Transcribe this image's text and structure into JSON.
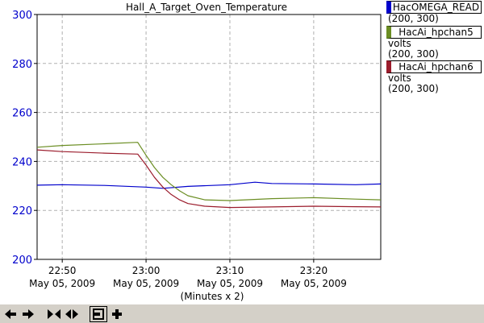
{
  "toolbar": {
    "icons": [
      "arrow-left-icon",
      "arrow-right-icon",
      "zoom-in-x-icon",
      "zoom-out-x-icon",
      "pointer-mode-icon",
      "add-icon"
    ]
  },
  "legend": [
    {
      "name": "HacOMEGA_READ",
      "units": "",
      "range": "(200, 300)",
      "color": "#0000cc"
    },
    {
      "name": "HacAi_hpchan5",
      "units": "volts",
      "range": "(200, 300)",
      "color": "#6b8e23"
    },
    {
      "name": "HacAi_hpchan6",
      "units": "volts",
      "range": "(200, 300)",
      "color": "#9b1c2c"
    }
  ],
  "chart_data": {
    "type": "line",
    "title": "Hall_A_Target_Oven_Temperature",
    "xlabel": "(Minutes x 2)",
    "x_range": [
      "22:47",
      "23:28"
    ],
    "x_ticks": [
      {
        "time": "22:50",
        "date": "May 05, 2009"
      },
      {
        "time": "23:00",
        "date": "May 05, 2009"
      },
      {
        "time": "23:10",
        "date": "May 05, 2009"
      },
      {
        "time": "23:20",
        "date": "May 05, 2009"
      }
    ],
    "ylim": [
      200,
      300
    ],
    "y_ticks": [
      200,
      220,
      240,
      260,
      280,
      300
    ],
    "grid": true,
    "axis_color": "#0000cc",
    "series": [
      {
        "name": "HacOMEGA_READ",
        "color": "#0000cc",
        "x": [
          "22:47",
          "22:50",
          "22:55",
          "23:00",
          "23:02",
          "23:05",
          "23:10",
          "23:13",
          "23:15",
          "23:20",
          "23:25",
          "23:28"
        ],
        "y": [
          230.3,
          230.5,
          230.2,
          229.5,
          229.0,
          229.8,
          230.5,
          231.5,
          231.0,
          230.8,
          230.5,
          230.8
        ]
      },
      {
        "name": "HacAi_hpchan5",
        "color": "#6b8e23",
        "x": [
          "22:47",
          "22:50",
          "22:55",
          "22:59",
          "23:00",
          "23:01",
          "23:02",
          "23:03",
          "23:04",
          "23:05",
          "23:07",
          "23:10",
          "23:15",
          "23:20",
          "23:25",
          "23:28"
        ],
        "y": [
          245.8,
          246.5,
          247.2,
          247.8,
          242.5,
          237.5,
          233.5,
          230.5,
          228.0,
          226.0,
          224.3,
          224.0,
          224.8,
          225.2,
          224.6,
          224.3
        ]
      },
      {
        "name": "HacAi_hpchan6",
        "color": "#9b1c2c",
        "x": [
          "22:47",
          "22:50",
          "22:55",
          "22:59",
          "23:00",
          "23:01",
          "23:02",
          "23:03",
          "23:04",
          "23:05",
          "23:07",
          "23:10",
          "23:15",
          "23:20",
          "23:25",
          "23:28"
        ],
        "y": [
          244.7,
          244.0,
          243.4,
          243.0,
          238.5,
          233.5,
          229.5,
          226.5,
          224.3,
          222.8,
          221.7,
          221.2,
          221.4,
          221.7,
          221.5,
          221.4
        ]
      }
    ]
  }
}
